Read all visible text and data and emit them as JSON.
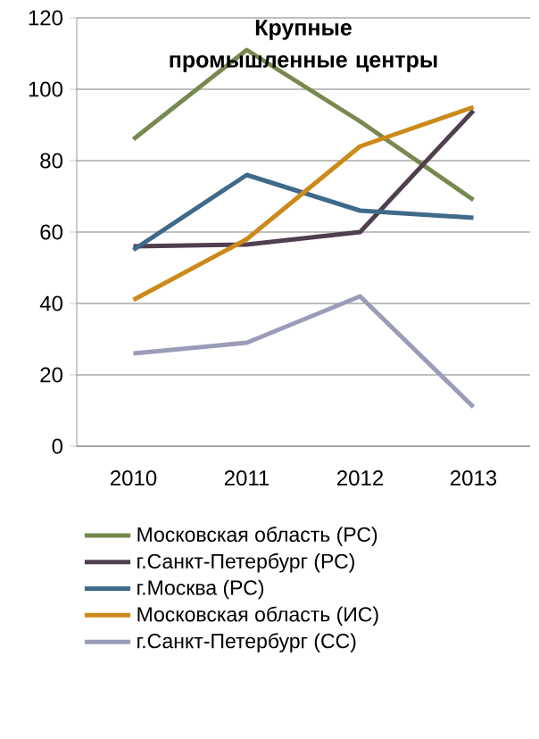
{
  "chart_data": {
    "type": "line",
    "title": "Крупные промышленные центры",
    "categories": [
      "2010",
      "2011",
      "2012",
      "2013"
    ],
    "series": [
      {
        "name": "Московская область (РС)",
        "color": "#77894f",
        "values": [
          86,
          111,
          91,
          69
        ]
      },
      {
        "name": "г.Санкт-Петербург (РС)",
        "color": "#4f3f4f",
        "values": [
          56,
          56.5,
          60,
          94
        ]
      },
      {
        "name": "г.Москва (РС)",
        "color": "#3f6a8a",
        "values": [
          55,
          76,
          66,
          64
        ]
      },
      {
        "name": "Московская область (ИС)",
        "color": "#cc8a1a",
        "values": [
          41,
          58,
          84,
          95
        ]
      },
      {
        "name": "г.Санкт-Петербург (СС)",
        "color": "#9a9cb8",
        "values": [
          26,
          29,
          42,
          11
        ]
      }
    ],
    "ylim": [
      0,
      120
    ],
    "yticks": [
      0,
      20,
      40,
      60,
      80,
      100,
      120
    ],
    "grid": "y",
    "legend": "bottom",
    "marker": "none",
    "line_style": "solid"
  }
}
